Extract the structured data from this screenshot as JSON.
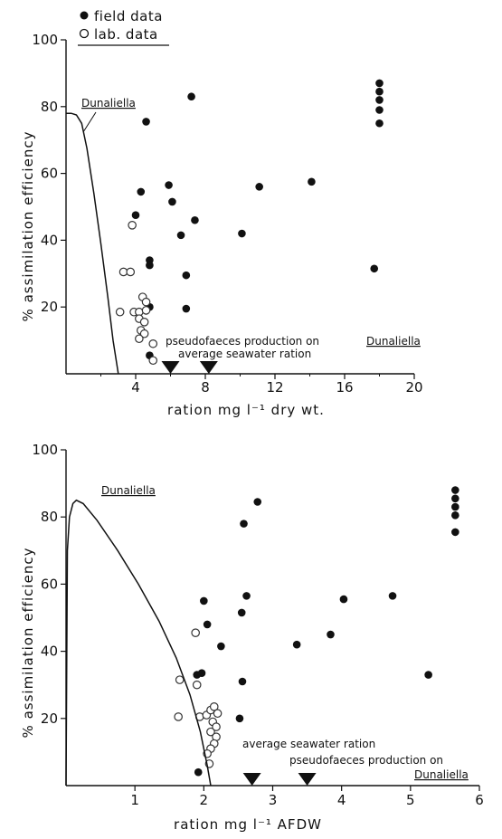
{
  "chart_data": [
    {
      "type": "scatter",
      "title": "",
      "xlabel": "ration mg l⁻¹ dry wt.",
      "ylabel": "% assimilation efficiency",
      "xlim": [
        0,
        20
      ],
      "ylim": [
        0,
        100
      ],
      "x_ticks": [
        "4",
        "8",
        "12",
        "16",
        "20"
      ],
      "y_ticks": [
        "20",
        "40",
        "60",
        "80",
        "100"
      ],
      "legend": {
        "placement": "top-left",
        "entries": [
          "field data",
          "lab. data"
        ]
      },
      "series": [
        {
          "name": "field data",
          "marker": "filled",
          "points": [
            [
              4.6,
              75.5
            ],
            [
              4.3,
              54.5
            ],
            [
              4.0,
              47.5
            ],
            [
              4.8,
              34
            ],
            [
              4.8,
              32.5
            ],
            [
              4.8,
              20
            ],
            [
              4.8,
              5.5
            ],
            [
              5.9,
              56.5
            ],
            [
              6.1,
              51.5
            ],
            [
              7.2,
              83
            ],
            [
              6.6,
              41.5
            ],
            [
              7.4,
              46
            ],
            [
              6.9,
              29.5
            ],
            [
              6.9,
              19.5
            ],
            [
              10.1,
              42
            ],
            [
              11.1,
              56
            ],
            [
              14.1,
              57.5
            ],
            [
              17.7,
              31.5
            ],
            [
              18.0,
              87
            ],
            [
              18.0,
              84.5
            ],
            [
              18.0,
              82
            ],
            [
              18.0,
              79
            ],
            [
              18.0,
              75
            ]
          ]
        },
        {
          "name": "lab. data",
          "marker": "open",
          "points": [
            [
              3.8,
              44.5
            ],
            [
              3.3,
              30.5
            ],
            [
              3.7,
              30.5
            ],
            [
              3.1,
              18.5
            ],
            [
              3.9,
              18.5
            ],
            [
              4.2,
              18.5
            ],
            [
              4.4,
              23
            ],
            [
              4.6,
              21.5
            ],
            [
              4.2,
              16.5
            ],
            [
              4.5,
              15.5
            ],
            [
              4.3,
              13
            ],
            [
              4.5,
              12
            ],
            [
              4.2,
              10.5
            ],
            [
              5.0,
              9
            ],
            [
              4.6,
              19
            ],
            [
              5.0,
              4
            ]
          ]
        },
        {
          "name": "Dunaliella",
          "type": "line",
          "points": [
            [
              0,
              78
            ],
            [
              0.3,
              78
            ],
            [
              0.6,
              77.5
            ],
            [
              0.9,
              75
            ],
            [
              1.2,
              67.5
            ],
            [
              1.6,
              54
            ],
            [
              2.0,
              39
            ],
            [
              2.4,
              23
            ],
            [
              2.7,
              10
            ],
            [
              3.0,
              0
            ]
          ]
        }
      ],
      "annotations": [
        {
          "text": "Dunaliella",
          "underline": true
        },
        {
          "text": "pseudofaeces production on",
          "arrow_x": 6
        },
        {
          "text": "Dunaliella",
          "underline": true
        },
        {
          "text": "average seawater ration",
          "arrow_x": 8.2
        }
      ]
    },
    {
      "type": "scatter",
      "title": "",
      "xlabel": "ration mg l⁻¹ AFDW",
      "ylabel": "% assimilation efficiency",
      "xlim": [
        0,
        6
      ],
      "ylim": [
        0,
        100
      ],
      "x_ticks": [
        "1",
        "2",
        "3",
        "4",
        "5",
        "6"
      ],
      "y_ticks": [
        "20",
        "40",
        "60",
        "80",
        "100"
      ],
      "series": [
        {
          "name": "field data",
          "marker": "filled",
          "points": [
            [
              2.0,
              55
            ],
            [
              2.05,
              48
            ],
            [
              1.9,
              33
            ],
            [
              1.97,
              33.5
            ],
            [
              2.25,
              41.5
            ],
            [
              1.92,
              4
            ],
            [
              2.55,
              51.5
            ],
            [
              2.58,
              78
            ],
            [
              2.62,
              56.5
            ],
            [
              2.78,
              84.5
            ],
            [
              2.56,
              31
            ],
            [
              2.52,
              20
            ],
            [
              3.35,
              42
            ],
            [
              3.84,
              45
            ],
            [
              4.03,
              55.5
            ],
            [
              4.74,
              56.5
            ],
            [
              5.26,
              33
            ],
            [
              5.65,
              88
            ],
            [
              5.65,
              85.5
            ],
            [
              5.65,
              83
            ],
            [
              5.65,
              80.5
            ],
            [
              5.65,
              75.5
            ]
          ]
        },
        {
          "name": "lab. data",
          "marker": "open",
          "points": [
            [
              1.88,
              45.5
            ],
            [
              1.65,
              31.5
            ],
            [
              1.63,
              20.5
            ],
            [
              1.9,
              30
            ],
            [
              1.94,
              20.5
            ],
            [
              2.04,
              21
            ],
            [
              2.1,
              22.5
            ],
            [
              2.15,
              23.5
            ],
            [
              2.2,
              21.5
            ],
            [
              2.13,
              19
            ],
            [
              2.18,
              17.5
            ],
            [
              2.1,
              16
            ],
            [
              2.18,
              14.5
            ],
            [
              2.15,
              12.5
            ],
            [
              2.1,
              11
            ],
            [
              2.05,
              9.5
            ],
            [
              2.08,
              6.5
            ]
          ]
        },
        {
          "name": "Dunaliella",
          "type": "line",
          "points": [
            [
              0.0,
              0
            ],
            [
              0.02,
              70
            ],
            [
              0.05,
              80
            ],
            [
              0.1,
              84
            ],
            [
              0.15,
              85
            ],
            [
              0.25,
              84
            ],
            [
              0.45,
              79
            ],
            [
              0.75,
              70
            ],
            [
              1.05,
              60
            ],
            [
              1.35,
              49
            ],
            [
              1.6,
              38
            ],
            [
              1.8,
              27
            ],
            [
              1.95,
              16
            ],
            [
              2.05,
              6
            ],
            [
              2.1,
              0
            ]
          ]
        }
      ],
      "annotations": [
        {
          "text": "Dunaliella",
          "underline": true
        },
        {
          "text": "average seawater ration",
          "arrow_x": 2.7
        },
        {
          "text": "pseudofaeces production on",
          "arrow_x": 3.5
        },
        {
          "text": "Dunaliella",
          "underline": true
        }
      ]
    }
  ]
}
